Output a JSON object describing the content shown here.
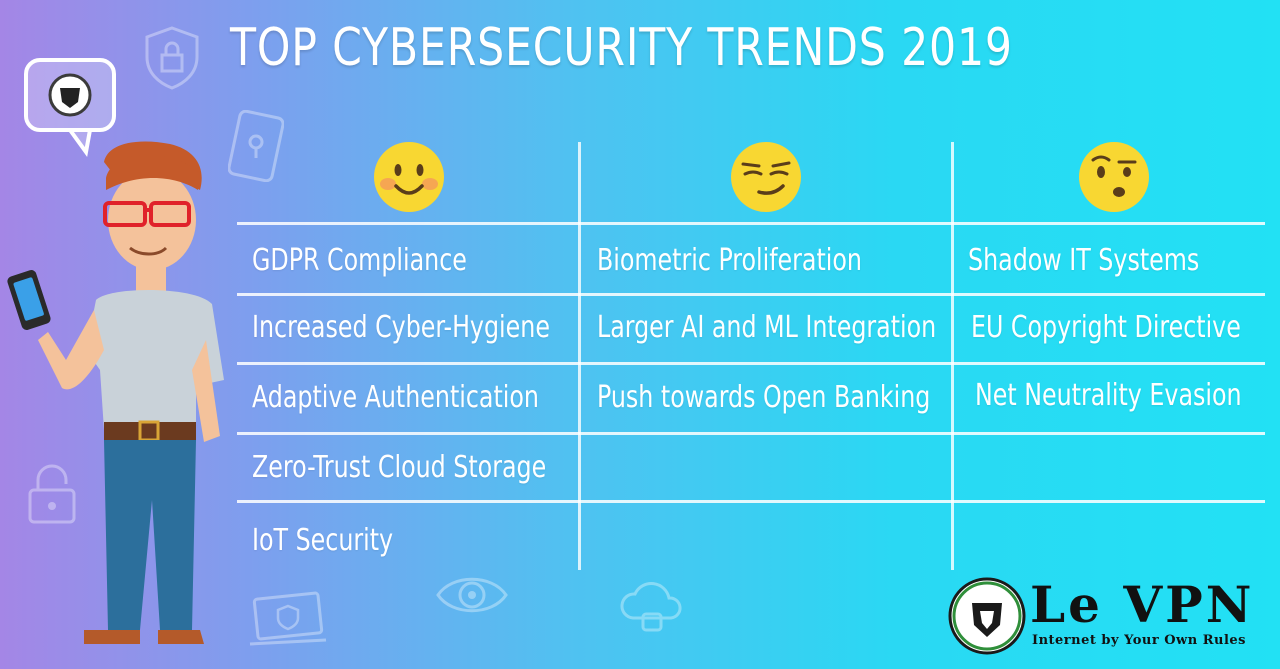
{
  "title": "TOP CYBERSECURITY TRENDS 2019",
  "columns": [
    {
      "emoji": "happy-face-icon",
      "items": [
        "GDPR Compliance",
        "Increased Cyber-Hygiene",
        "Adaptive Authentication",
        "Zero-Trust Cloud Storage",
        "IoT Security"
      ]
    },
    {
      "emoji": "smirking-face-icon",
      "items": [
        "Biometric Proliferation",
        "Larger AI and ML Integration",
        "Push towards Open Banking"
      ]
    },
    {
      "emoji": "skeptical-face-icon",
      "items": [
        "Shadow IT Systems",
        "EU Copyright Directive",
        "Net Neutrality Evasion"
      ]
    }
  ],
  "brand": {
    "name": "Le VPN",
    "tagline": "Internet by Your Own Rules"
  },
  "colors": {
    "emoji_yellow": "#f8d732",
    "grid_line": "#ffffff",
    "text": "#ffffff"
  }
}
